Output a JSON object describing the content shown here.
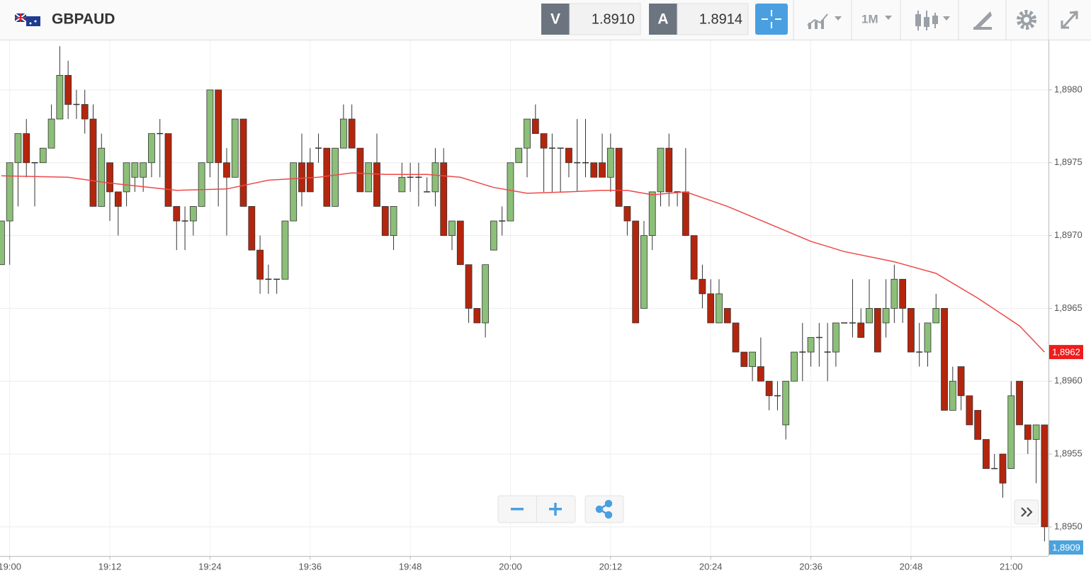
{
  "header": {
    "symbol": "GBPAUD",
    "bid_label": "V",
    "bid": "1.8910",
    "ask_label": "A",
    "ask": "1.8914",
    "interval": "1M"
  },
  "chart_data": {
    "type": "candlestick",
    "x": [
      "18:59",
      "19:00",
      "19:01",
      "19:02",
      "19:03",
      "19:04",
      "19:05",
      "19:06",
      "19:07",
      "19:08",
      "19:09",
      "19:10",
      "19:11",
      "19:12",
      "19:13",
      "19:14",
      "19:15",
      "19:16",
      "19:17",
      "19:18",
      "19:19",
      "19:20",
      "19:21",
      "19:22",
      "19:23",
      "19:24",
      "19:25",
      "19:26",
      "19:27",
      "19:28",
      "19:29",
      "19:30",
      "19:31",
      "19:32",
      "19:33",
      "19:34",
      "19:35",
      "19:36",
      "19:37",
      "19:38",
      "19:39",
      "19:40",
      "19:41",
      "19:42",
      "19:43",
      "19:44",
      "19:45",
      "19:46",
      "19:47",
      "19:48",
      "19:49",
      "19:50",
      "19:51",
      "19:52",
      "19:53",
      "19:54",
      "19:55",
      "19:56",
      "19:57",
      "19:58",
      "19:59",
      "20:00",
      "20:01",
      "20:02",
      "20:03",
      "20:04",
      "20:05",
      "20:06",
      "20:07",
      "20:08",
      "20:09",
      "20:10",
      "20:11",
      "20:12",
      "20:13",
      "20:14",
      "20:15",
      "20:16",
      "20:17",
      "20:18",
      "20:19",
      "20:20",
      "20:21",
      "20:22",
      "20:23",
      "20:24",
      "20:25",
      "20:26",
      "20:27",
      "20:28",
      "20:29",
      "20:30",
      "20:31",
      "20:32",
      "20:33",
      "20:34",
      "20:35",
      "20:36",
      "20:37",
      "20:38",
      "20:39",
      "20:40",
      "20:41",
      "20:42",
      "20:43",
      "20:44",
      "20:45",
      "20:46",
      "20:47",
      "20:48",
      "20:49",
      "20:50",
      "20:51",
      "20:52",
      "20:53",
      "20:54",
      "20:55",
      "20:56",
      "20:57",
      "20:58",
      "20:59",
      "21:00",
      "21:01",
      "21:02",
      "21:03",
      "21:04"
    ],
    "open": [
      1.8968,
      1.8971,
      1.8975,
      1.8977,
      1.8975,
      1.8975,
      1.8976,
      1.8978,
      1.8981,
      1.8979,
      1.8979,
      1.8978,
      1.8972,
      1.8975,
      1.8973,
      1.8973,
      1.8974,
      1.8974,
      1.8975,
      1.8977,
      1.8977,
      1.8972,
      1.8971,
      1.8971,
      1.8972,
      1.8975,
      1.898,
      1.8975,
      1.8974,
      1.8978,
      1.8972,
      1.8969,
      1.8967,
      1.8967,
      1.8967,
      1.8971,
      1.8975,
      1.8975,
      1.8976,
      1.8976,
      1.8972,
      1.8976,
      1.8978,
      1.8976,
      1.8973,
      1.8975,
      1.8972,
      1.897,
      1.8973,
      1.8974,
      1.8974,
      1.8973,
      1.8973,
      1.8975,
      1.897,
      1.8971,
      1.8968,
      1.8965,
      1.8964,
      1.8969,
      1.8971,
      1.8971,
      1.8975,
      1.8976,
      1.8978,
      1.8977,
      1.8976,
      1.8976,
      1.8976,
      1.8975,
      1.8975,
      1.8975,
      1.8975,
      1.8974,
      1.8976,
      1.8972,
      1.8971,
      1.8965,
      1.897,
      1.8973,
      1.8976,
      1.8973,
      1.8973,
      1.897,
      1.8967,
      1.8966,
      1.8964,
      1.8965,
      1.8964,
      1.8962,
      1.8961,
      1.8961,
      1.896,
      1.8959,
      1.8957,
      1.896,
      1.8962,
      1.8962,
      1.8963,
      1.8962,
      1.8962,
      1.8964,
      1.8964,
      1.8964,
      1.8964,
      1.8965,
      1.8964,
      1.8965,
      1.8967,
      1.8965,
      1.8962,
      1.8962,
      1.8964,
      1.8965,
      1.8958,
      1.8961,
      1.8959,
      1.8958,
      1.8956,
      1.8954,
      1.8955,
      1.8954,
      1.896,
      1.8957,
      1.8956,
      1.8957
    ],
    "high": [
      1.8971,
      1.8975,
      1.8977,
      1.8978,
      1.8975,
      1.8976,
      1.8979,
      1.8983,
      1.8982,
      1.898,
      1.898,
      1.8979,
      1.8977,
      1.8975,
      1.8973,
      1.8975,
      1.8975,
      1.8975,
      1.8977,
      1.8978,
      1.8977,
      1.8972,
      1.8972,
      1.8972,
      1.8975,
      1.898,
      1.898,
      1.8976,
      1.8978,
      1.8978,
      1.8972,
      1.897,
      1.8968,
      1.8967,
      1.8971,
      1.8975,
      1.8977,
      1.8976,
      1.8977,
      1.8976,
      1.8976,
      1.8979,
      1.8979,
      1.8976,
      1.8975,
      1.8977,
      1.8972,
      1.8972,
      1.8975,
      1.8975,
      1.8975,
      1.8974,
      1.8976,
      1.8976,
      1.8971,
      1.8971,
      1.8968,
      1.8965,
      1.8968,
      1.8971,
      1.8972,
      1.8975,
      1.8976,
      1.8978,
      1.8979,
      1.8977,
      1.8977,
      1.8976,
      1.8976,
      1.8978,
      1.8978,
      1.8975,
      1.8977,
      1.8977,
      1.8976,
      1.8972,
      1.8971,
      1.8971,
      1.8973,
      1.8976,
      1.8977,
      1.8973,
      1.8976,
      1.897,
      1.8968,
      1.8967,
      1.8967,
      1.8965,
      1.8964,
      1.8962,
      1.8962,
      1.8963,
      1.896,
      1.896,
      1.896,
      1.8962,
      1.8964,
      1.8963,
      1.8964,
      1.8964,
      1.8964,
      1.8964,
      1.8967,
      1.8965,
      1.8967,
      1.8965,
      1.8967,
      1.8968,
      1.8967,
      1.8965,
      1.8964,
      1.8964,
      1.8966,
      1.8965,
      1.8961,
      1.8961,
      1.8959,
      1.8958,
      1.8956,
      1.8955,
      1.8955,
      1.896,
      1.896,
      1.8957,
      1.8957,
      1.8957
    ],
    "low": [
      1.8968,
      1.8968,
      1.8972,
      1.8974,
      1.8972,
      1.8975,
      1.8976,
      1.8978,
      1.8978,
      1.8978,
      1.8977,
      1.8972,
      1.8972,
      1.8971,
      1.897,
      1.8972,
      1.8973,
      1.8973,
      1.8974,
      1.8974,
      1.8972,
      1.8969,
      1.8969,
      1.897,
      1.8972,
      1.8974,
      1.8972,
      1.897,
      1.8974,
      1.8972,
      1.8969,
      1.8966,
      1.8966,
      1.8966,
      1.8967,
      1.8971,
      1.8972,
      1.8973,
      1.8975,
      1.8972,
      1.8972,
      1.8976,
      1.8976,
      1.8973,
      1.8973,
      1.8972,
      1.897,
      1.8969,
      1.8973,
      1.8973,
      1.8972,
      1.8973,
      1.8972,
      1.897,
      1.8969,
      1.8968,
      1.8964,
      1.8964,
      1.8963,
      1.8969,
      1.897,
      1.8971,
      1.8975,
      1.8974,
      1.8977,
      1.8973,
      1.8973,
      1.8973,
      1.8974,
      1.8973,
      1.8974,
      1.8974,
      1.8974,
      1.8973,
      1.8972,
      1.897,
      1.8964,
      1.8965,
      1.8969,
      1.8972,
      1.8972,
      1.8972,
      1.897,
      1.8967,
      1.8965,
      1.8964,
      1.8964,
      1.8964,
      1.8962,
      1.8961,
      1.896,
      1.896,
      1.8958,
      1.8958,
      1.8956,
      1.896,
      1.896,
      1.8961,
      1.8961,
      1.896,
      1.8961,
      1.8964,
      1.8963,
      1.8963,
      1.8964,
      1.8962,
      1.8963,
      1.8964,
      1.8964,
      1.8962,
      1.8961,
      1.8961,
      1.8964,
      1.8958,
      1.8958,
      1.8958,
      1.8957,
      1.8956,
      1.8954,
      1.8954,
      1.8952,
      1.8954,
      1.8957,
      1.8955,
      1.8953,
      1.8949
    ],
    "close": [
      1.8971,
      1.8975,
      1.8977,
      1.8975,
      1.8975,
      1.8976,
      1.8978,
      1.8981,
      1.8979,
      1.8979,
      1.8978,
      1.8972,
      1.8976,
      1.8973,
      1.8972,
      1.8975,
      1.8975,
      1.8975,
      1.8977,
      1.8977,
      1.8972,
      1.8971,
      1.8971,
      1.8972,
      1.8975,
      1.898,
      1.8975,
      1.8974,
      1.8978,
      1.8972,
      1.8969,
      1.8967,
      1.8967,
      1.8967,
      1.8971,
      1.8975,
      1.8973,
      1.8973,
      1.8976,
      1.8972,
      1.8976,
      1.8978,
      1.8976,
      1.8973,
      1.8975,
      1.8972,
      1.897,
      1.8972,
      1.8974,
      1.8974,
      1.8974,
      1.8973,
      1.8975,
      1.897,
      1.8971,
      1.8968,
      1.8965,
      1.8964,
      1.8968,
      1.8971,
      1.8971,
      1.8975,
      1.8976,
      1.8978,
      1.8977,
      1.8976,
      1.8976,
      1.8976,
      1.8975,
      1.8975,
      1.8975,
      1.8974,
      1.8974,
      1.8976,
      1.8972,
      1.8971,
      1.8964,
      1.897,
      1.8973,
      1.8976,
      1.8973,
      1.8973,
      1.897,
      1.8967,
      1.8966,
      1.8964,
      1.8966,
      1.8964,
      1.8962,
      1.8961,
      1.8962,
      1.896,
      1.8959,
      1.8959,
      1.896,
      1.8962,
      1.8962,
      1.8963,
      1.8963,
      1.8962,
      1.8964,
      1.8964,
      1.8964,
      1.8963,
      1.8965,
      1.8962,
      1.8965,
      1.8967,
      1.8965,
      1.8962,
      1.8962,
      1.8964,
      1.8965,
      1.8958,
      1.896,
      1.8959,
      1.8957,
      1.8956,
      1.8954,
      1.8954,
      1.8953,
      1.8959,
      1.8957,
      1.8956,
      1.8957,
      1.895
    ],
    "up_color": "#8cbf78",
    "down_color": "#b3260d",
    "ylim": [
      1.8948,
      1.89834
    ],
    "yticks": [
      {
        "value": 1.895,
        "label": "1,8950"
      },
      {
        "value": 1.8955,
        "label": "1,8955"
      },
      {
        "value": 1.896,
        "label": "1,8960"
      },
      {
        "value": 1.8965,
        "label": "1,8965"
      },
      {
        "value": 1.897,
        "label": "1,8970"
      },
      {
        "value": 1.8975,
        "label": "1,8975"
      },
      {
        "value": 1.898,
        "label": "1,8980"
      }
    ],
    "xticks": [
      "19:00",
      "19:12",
      "19:24",
      "19:36",
      "19:48",
      "20:00",
      "20:12",
      "20:24",
      "20:36",
      "20:48",
      "21:00"
    ],
    "grid": true,
    "moving_average": {
      "color": "#f04848",
      "x": [
        "18:59",
        "19:07",
        "19:12",
        "19:20",
        "19:26",
        "19:31",
        "19:37",
        "19:41",
        "19:45",
        "19:50",
        "19:54",
        "19:58",
        "20:02",
        "20:07",
        "20:11",
        "20:14",
        "20:17",
        "20:21",
        "20:26",
        "20:31",
        "20:36",
        "20:40",
        "20:46",
        "20:51",
        "20:56",
        "21:01",
        "21:04"
      ],
      "values": [
        1.89741,
        1.8974,
        1.89736,
        1.89731,
        1.89732,
        1.89738,
        1.8974,
        1.89743,
        1.89742,
        1.89742,
        1.8974,
        1.89733,
        1.89729,
        1.8973,
        1.89731,
        1.89731,
        1.89728,
        1.8973,
        1.8972,
        1.89708,
        1.89696,
        1.89689,
        1.89682,
        1.89674,
        1.89657,
        1.89638,
        1.8962
      ]
    },
    "price_tags": [
      {
        "value": 1.8962,
        "label": "1,8962",
        "color": "#ee1c1c"
      },
      {
        "label": "1,8909",
        "color": "#4ba3dc"
      }
    ]
  }
}
